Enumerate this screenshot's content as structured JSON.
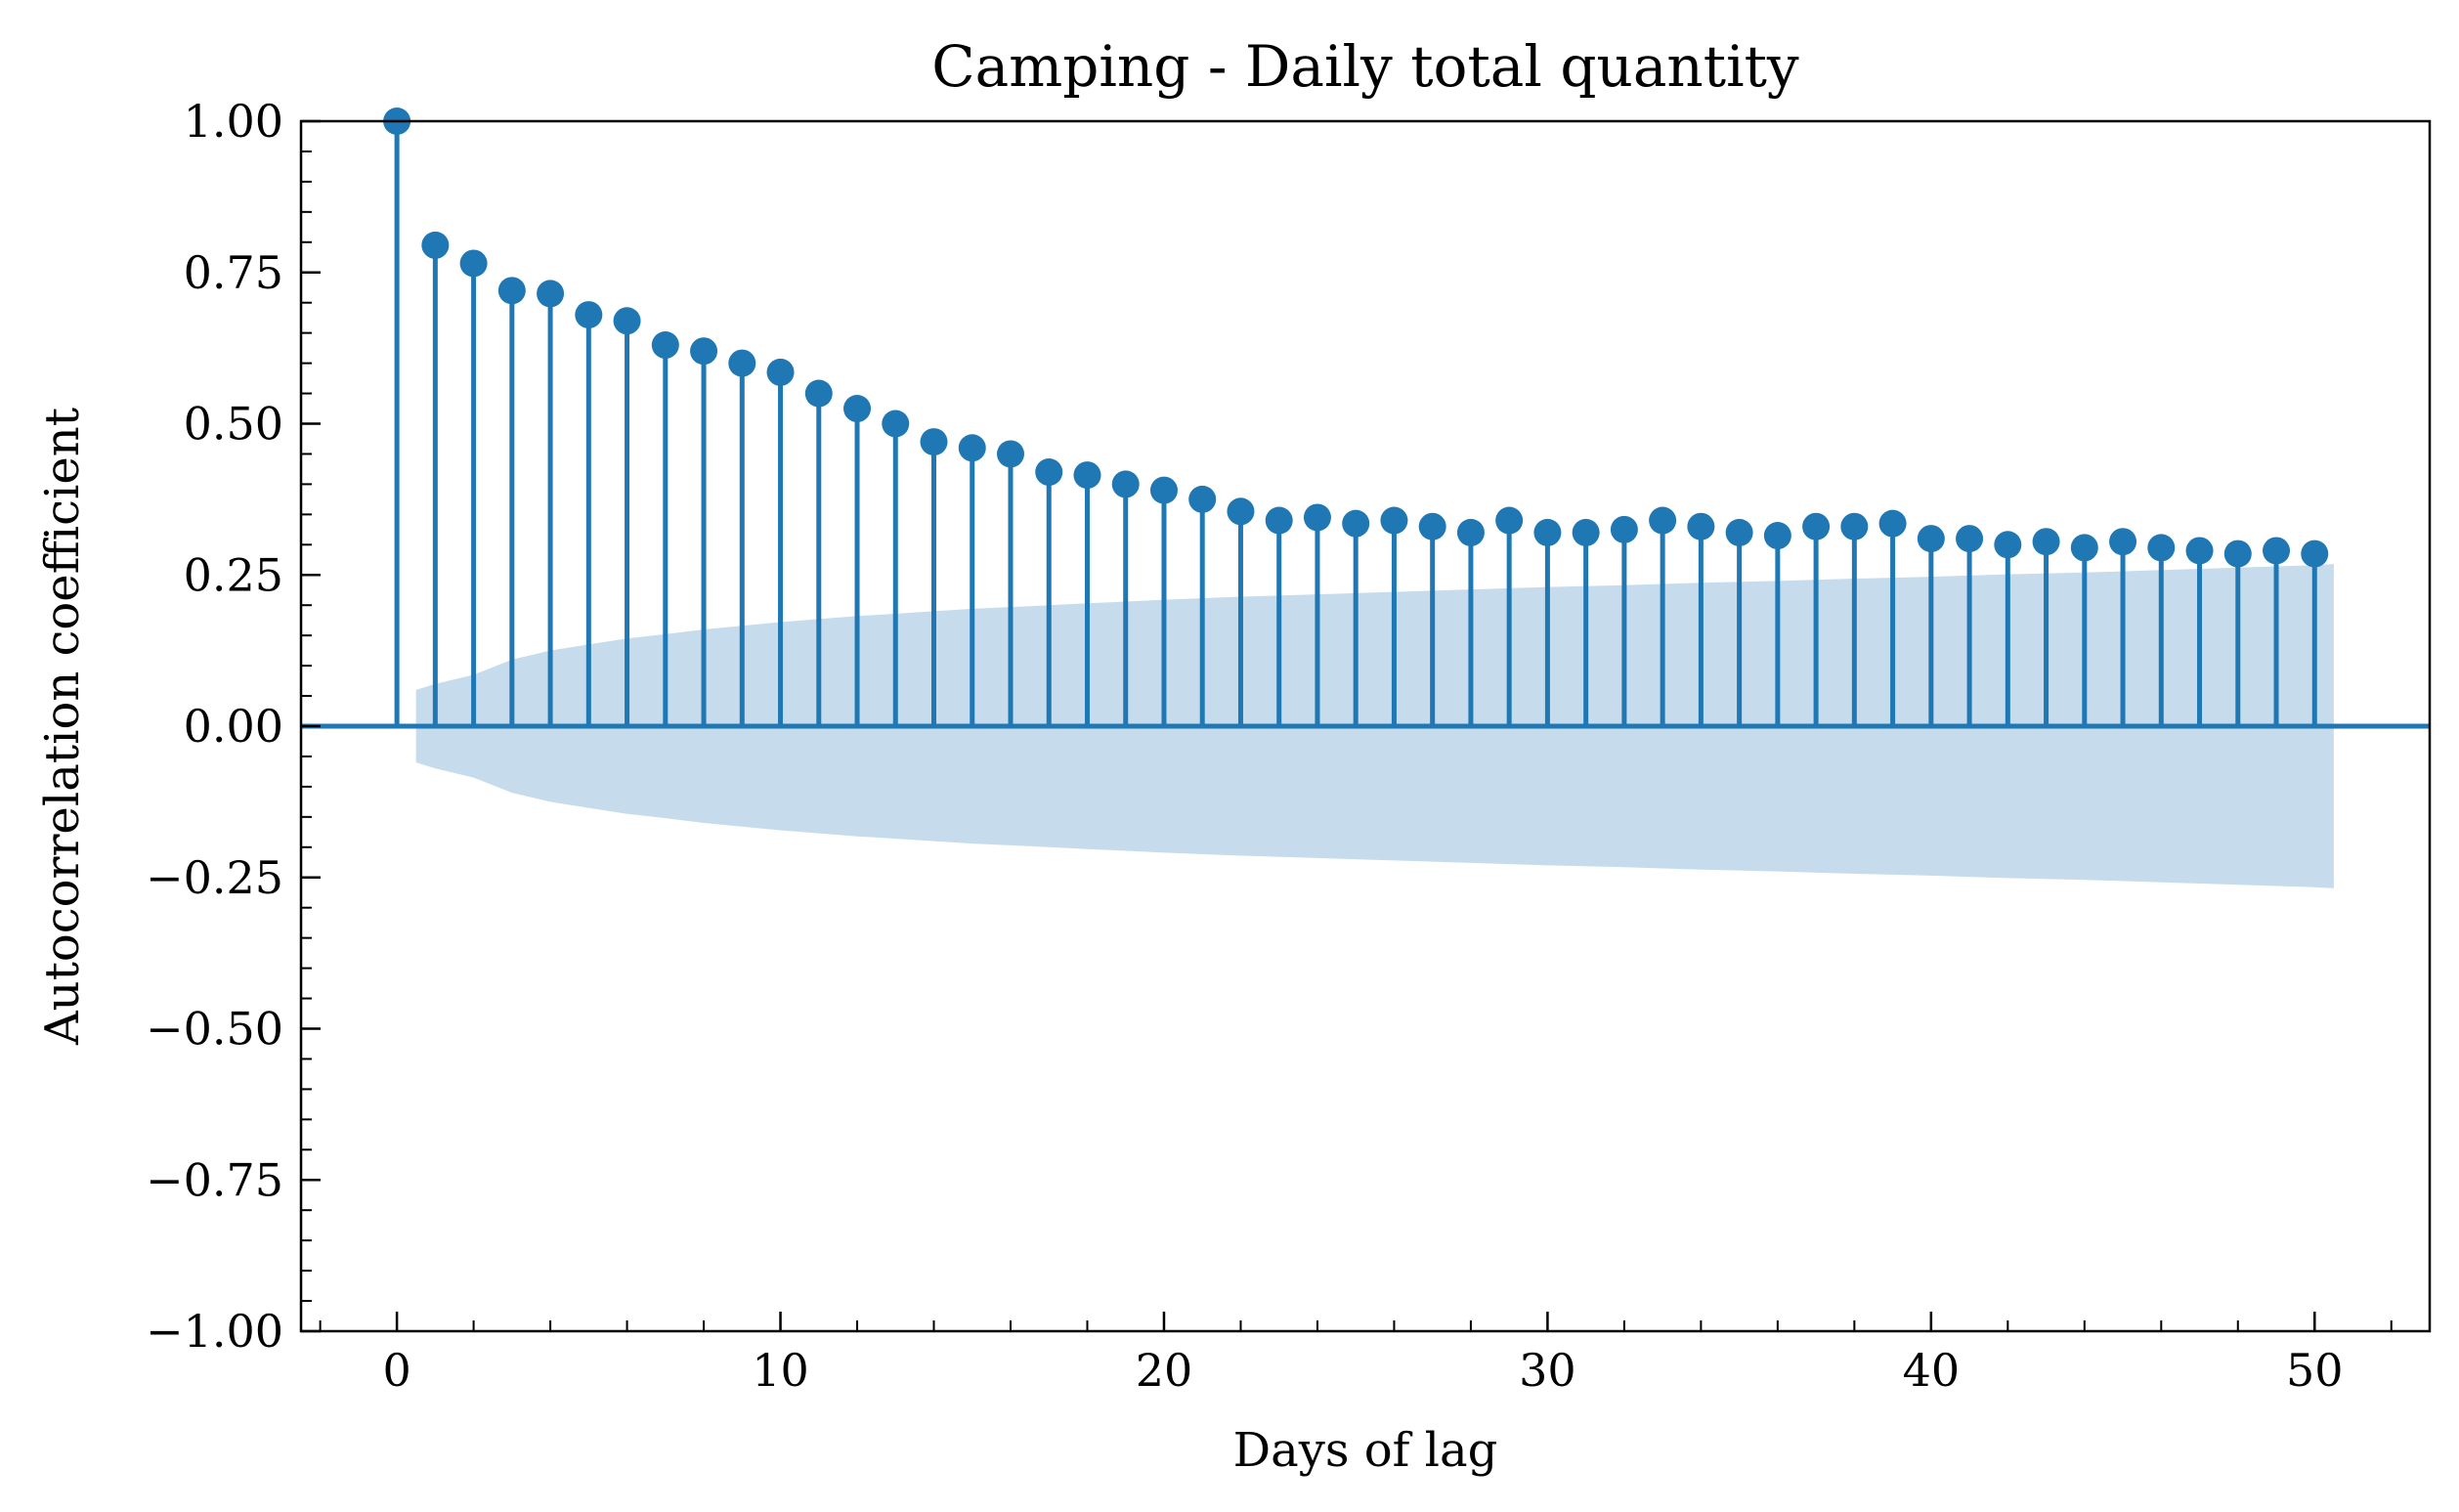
{
  "chart_data": {
    "type": "stem",
    "title": "Camping - Daily total quantity",
    "xlabel": "Days of lag",
    "ylabel": "Autocorrelation coefficient",
    "xlim": [
      -2.5,
      53
    ],
    "ylim": [
      -1.0,
      1.0
    ],
    "x_ticks": [
      0,
      10,
      20,
      30,
      40,
      50
    ],
    "x_tick_labels": [
      "0",
      "10",
      "20",
      "30",
      "40",
      "50"
    ],
    "y_ticks": [
      -1.0,
      -0.75,
      -0.5,
      -0.25,
      0.0,
      0.25,
      0.5,
      0.75,
      1.0
    ],
    "y_tick_labels": [
      "−1.00",
      "−0.75",
      "−0.50",
      "−0.25",
      "0.00",
      "0.25",
      "0.50",
      "0.75",
      "1.00"
    ],
    "grid": false,
    "colors": {
      "stem": "#1f77b4",
      "confidence_band": "#c6dcec",
      "axis": "#000000"
    },
    "series": [
      {
        "lags": [
          0,
          1,
          2,
          3,
          4,
          5,
          6,
          7,
          8,
          9,
          10,
          11,
          12,
          13,
          14,
          15,
          16,
          17,
          18,
          19,
          20,
          21,
          22,
          23,
          24,
          25,
          26,
          27,
          28,
          29,
          30,
          31,
          32,
          33,
          34,
          35,
          36,
          37,
          38,
          39,
          40,
          41,
          42,
          43,
          44,
          45,
          46,
          47,
          48,
          49,
          50
        ],
        "acf": [
          1.0,
          0.795,
          0.765,
          0.72,
          0.715,
          0.68,
          0.67,
          0.63,
          0.62,
          0.6,
          0.585,
          0.55,
          0.525,
          0.5,
          0.47,
          0.46,
          0.45,
          0.42,
          0.415,
          0.4,
          0.39,
          0.375,
          0.355,
          0.34,
          0.345,
          0.335,
          0.34,
          0.33,
          0.32,
          0.34,
          0.32,
          0.32,
          0.325,
          0.34,
          0.33,
          0.32,
          0.315,
          0.33,
          0.33,
          0.335,
          0.31,
          0.31,
          0.3,
          0.305,
          0.295,
          0.305,
          0.295,
          0.29,
          0.285,
          0.29,
          0.285
        ]
      }
    ],
    "confidence_band": {
      "x": [
        0.5,
        1,
        2,
        3,
        4,
        5,
        6,
        7,
        8,
        9,
        10,
        11,
        12,
        13,
        14,
        15,
        16,
        17,
        18,
        19,
        20,
        22,
        24,
        26,
        28,
        30,
        32,
        34,
        36,
        38,
        40,
        42,
        44,
        46,
        48,
        50,
        50.5
      ],
      "upper": [
        0.06,
        0.07,
        0.085,
        0.11,
        0.125,
        0.135,
        0.145,
        0.152,
        0.16,
        0.166,
        0.172,
        0.177,
        0.182,
        0.186,
        0.19,
        0.194,
        0.197,
        0.2,
        0.203,
        0.206,
        0.209,
        0.214,
        0.218,
        0.222,
        0.226,
        0.23,
        0.233,
        0.237,
        0.24,
        0.244,
        0.247,
        0.251,
        0.254,
        0.258,
        0.262,
        0.266,
        0.268
      ]
    }
  }
}
